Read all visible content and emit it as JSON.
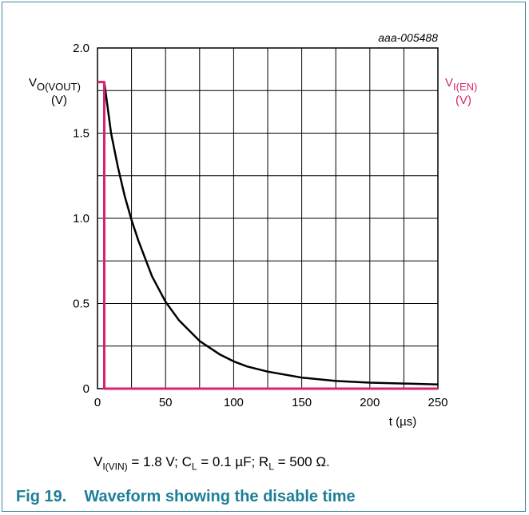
{
  "chart_data": {
    "type": "line",
    "id_label": "aaa-005488",
    "xlabel": "t (µs)",
    "x_ticks": [
      "0",
      "50",
      "100",
      "150",
      "200",
      "250"
    ],
    "y_ticks": [
      "0",
      "0.5",
      "1.0",
      "1.5",
      "2.0"
    ],
    "xlim": [
      0,
      250
    ],
    "ylim": [
      0,
      2.0
    ],
    "grid": true,
    "left_axis": {
      "main": "V",
      "sub": "O(VOUT)",
      "unit": "(V)"
    },
    "right_axis": {
      "main": "V",
      "sub": "I(EN)",
      "unit": "(V)"
    },
    "series": [
      {
        "color": "#000000",
        "x": [
          0,
          4,
          5,
          10,
          15,
          20,
          25,
          30,
          40,
          50,
          60,
          75,
          90,
          100,
          110,
          125,
          150,
          175,
          200,
          225,
          250
        ],
        "y": [
          1.8,
          1.8,
          1.8,
          1.5,
          1.3,
          1.13,
          0.99,
          0.87,
          0.66,
          0.51,
          0.4,
          0.28,
          0.2,
          0.16,
          0.13,
          0.1,
          0.065,
          0.045,
          0.035,
          0.03,
          0.025
        ]
      },
      {
        "color": "#d6246e",
        "x": [
          0,
          5,
          5,
          250
        ],
        "y": [
          1.8,
          1.8,
          0,
          0
        ]
      }
    ]
  },
  "caption": {
    "v_main": "V",
    "v_sub": "I(VIN)",
    "v_rest": " = 1.8 V; C",
    "c_sub": "L",
    "c_rest": " = 0.1 µF; R",
    "r_sub": "L",
    "r_rest": " = 500 Ω."
  },
  "figure": {
    "number": "Fig 19.",
    "title": "Waveform showing the disable time"
  }
}
